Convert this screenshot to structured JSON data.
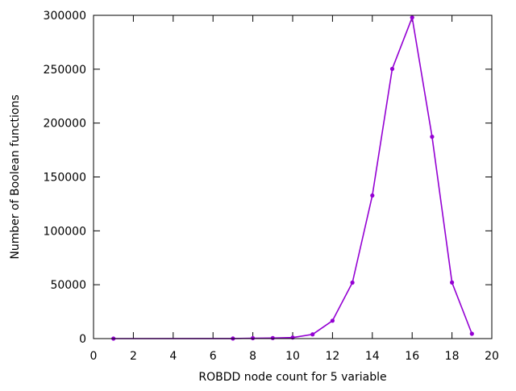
{
  "chart_data": {
    "type": "line",
    "title": "",
    "xlabel": "ROBDD node count for 5 variable",
    "ylabel": "Number of Boolean functions",
    "xlim": [
      0,
      20
    ],
    "ylim": [
      0,
      300000
    ],
    "xticks": [
      0,
      2,
      4,
      6,
      8,
      10,
      12,
      14,
      16,
      18,
      20
    ],
    "yticks": [
      0,
      50000,
      100000,
      150000,
      200000,
      250000,
      300000
    ],
    "grid": false,
    "legend": "none",
    "series": [
      {
        "color": "#9400d3",
        "x": [
          1,
          7,
          8,
          9,
          10,
          11,
          12,
          13,
          14,
          15,
          16,
          17,
          18,
          19
        ],
        "y": [
          2,
          70,
          400,
          500,
          1000,
          3900,
          16600,
          52000,
          132800,
          250300,
          298000,
          187300,
          52100,
          4500
        ]
      }
    ]
  }
}
